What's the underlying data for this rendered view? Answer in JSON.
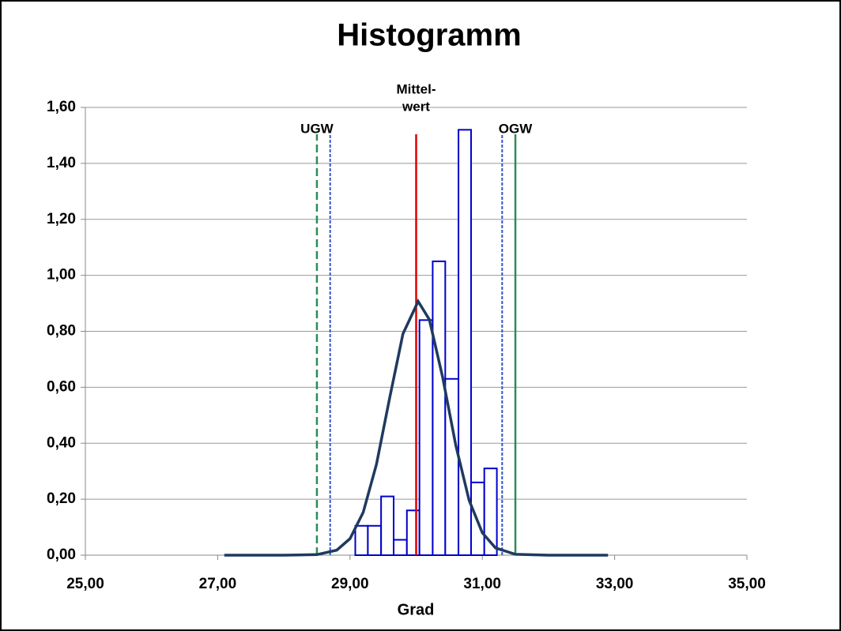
{
  "chart_data": {
    "type": "histogram",
    "title": "Histogramm",
    "x_label": "Grad",
    "bins": [
      29.08,
      29.27,
      29.47,
      29.66,
      29.86,
      30.05,
      30.25,
      30.44,
      30.64,
      30.83,
      31.03,
      31.22
    ],
    "counts": [
      0.105,
      0.105,
      0.21,
      0.055,
      0.16,
      0.84,
      1.05,
      0.63,
      1.52,
      0.26,
      0.31
    ],
    "color": "#0000cc",
    "curve": {
      "color": "#1f3a5f",
      "x": [
        27.1,
        28.0,
        28.5,
        28.8,
        29.0,
        29.2,
        29.4,
        29.6,
        29.8,
        30.03,
        30.2,
        30.4,
        30.6,
        30.8,
        31.0,
        31.2,
        31.5,
        32.0,
        32.9
      ],
      "values": [
        0,
        0,
        0.002,
        0.018,
        0.059,
        0.153,
        0.325,
        0.562,
        0.791,
        0.907,
        0.842,
        0.636,
        0.392,
        0.196,
        0.08,
        0.026,
        0.003,
        0,
        0
      ]
    },
    "reference_lines": [
      {
        "x": 28.5,
        "label": "UGW",
        "color": "#2e8b57",
        "style": "dashed"
      },
      {
        "x": 28.7,
        "color": "#3355cc",
        "style": "dotted"
      },
      {
        "x": 30.0,
        "label_lines": [
          "Mittel-",
          "wert"
        ],
        "color": "#e00000",
        "style": "solid"
      },
      {
        "x": 31.3,
        "color": "#3355cc",
        "style": "dotted"
      },
      {
        "x": 31.5,
        "label": "OGW",
        "color": "#2e8b57",
        "style": "solid"
      }
    ],
    "xlim": [
      25,
      35
    ],
    "xticks": [
      {
        "value": 25,
        "label": "25,00"
      },
      {
        "value": 27,
        "label": "27,00"
      },
      {
        "value": 29,
        "label": "29,00"
      },
      {
        "value": 31,
        "label": "31,00"
      },
      {
        "value": 33,
        "label": "33,00"
      },
      {
        "value": 35,
        "label": "35,00"
      }
    ],
    "ylim": [
      0,
      1.6
    ],
    "yticks": [
      {
        "value": 0,
        "label": "0,00"
      },
      {
        "value": 0.2,
        "label": "0,20"
      },
      {
        "value": 0.4,
        "label": "0,40"
      },
      {
        "value": 0.6,
        "label": "0,60"
      },
      {
        "value": 0.8,
        "label": "0,80"
      },
      {
        "value": 1.0,
        "label": "1,00"
      },
      {
        "value": 1.2,
        "label": "1,20"
      },
      {
        "value": 1.4,
        "label": "1,40"
      },
      {
        "value": 1.6,
        "label": "1,60"
      }
    ],
    "grid": true
  }
}
